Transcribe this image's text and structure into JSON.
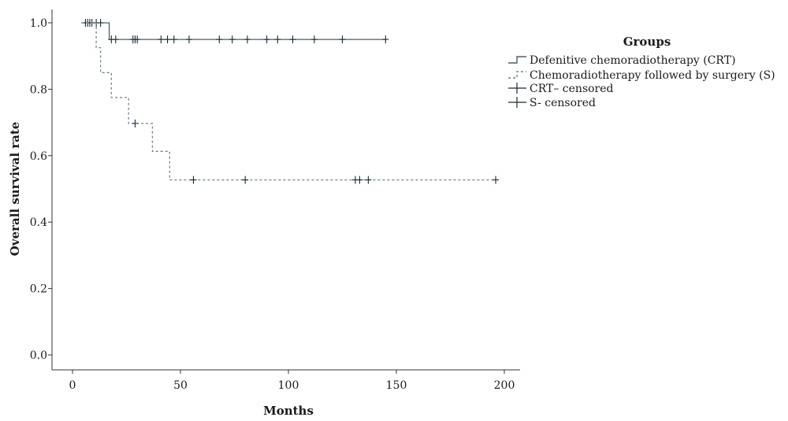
{
  "chart_data": {
    "type": "line",
    "subtype": "kaplan-meier",
    "title": "",
    "xlabel": "Months",
    "ylabel": "Overall survival rate",
    "xlim": [
      -5,
      210
    ],
    "ylim": [
      -0.04,
      1.05
    ],
    "x_ticks": [
      0,
      50,
      100,
      150,
      200
    ],
    "y_ticks": [
      0.0,
      0.2,
      0.4,
      0.6,
      0.8,
      1.0
    ],
    "y_tick_labels": [
      "0.0",
      "0.2",
      "0.4",
      "0.6",
      "0.8",
      "1.0"
    ],
    "grid": false,
    "legend": {
      "title": "Groups",
      "position": "right",
      "entries": [
        {
          "label": "Defenitive chemoradiotherapy (CRT)",
          "symbol": "step-solid"
        },
        {
          "label": "Chemoradiotherapy followed by surgery (S)",
          "symbol": "step-dotted"
        },
        {
          "label": "CRT– censored",
          "symbol": "censor"
        },
        {
          "label": "S- censored",
          "symbol": "censor"
        }
      ]
    },
    "series": [
      {
        "name": "Defenitive chemoradiotherapy (CRT)",
        "style": "solid",
        "color": "#4a5f6a",
        "steps": [
          [
            4,
            1.0
          ],
          [
            17,
            1.0
          ],
          [
            17,
            0.95
          ],
          [
            145,
            0.95
          ]
        ],
        "censored": [
          [
            6,
            1.0
          ],
          [
            7,
            1.0
          ],
          [
            8,
            1.0
          ],
          [
            9,
            1.0
          ],
          [
            11,
            1.0
          ],
          [
            13,
            1.0
          ],
          [
            18,
            0.95
          ],
          [
            20,
            0.95
          ],
          [
            28,
            0.95
          ],
          [
            29,
            0.95
          ],
          [
            30,
            0.95
          ],
          [
            41,
            0.95
          ],
          [
            44,
            0.95
          ],
          [
            47,
            0.95
          ],
          [
            54,
            0.95
          ],
          [
            68,
            0.95
          ],
          [
            74,
            0.95
          ],
          [
            81,
            0.95
          ],
          [
            90,
            0.95
          ],
          [
            95,
            0.95
          ],
          [
            102,
            0.95
          ],
          [
            112,
            0.95
          ],
          [
            125,
            0.95
          ],
          [
            145,
            0.95
          ]
        ]
      },
      {
        "name": "Chemoradiotherapy followed by surgery (S)",
        "style": "dotted",
        "color": "#6f8490",
        "steps": [
          [
            4,
            1.0
          ],
          [
            11,
            1.0
          ],
          [
            11,
            0.925
          ],
          [
            13,
            0.925
          ],
          [
            13,
            0.85
          ],
          [
            18,
            0.85
          ],
          [
            18,
            0.775
          ],
          [
            26,
            0.775
          ],
          [
            26,
            0.697
          ],
          [
            37,
            0.697
          ],
          [
            37,
            0.613
          ],
          [
            45,
            0.613
          ],
          [
            45,
            0.527
          ],
          [
            196,
            0.527
          ]
        ],
        "censored": [
          [
            29,
            0.697
          ],
          [
            56,
            0.527
          ],
          [
            80,
            0.527
          ],
          [
            131,
            0.527
          ],
          [
            133,
            0.527
          ],
          [
            137,
            0.527
          ],
          [
            196,
            0.527
          ]
        ]
      }
    ]
  }
}
